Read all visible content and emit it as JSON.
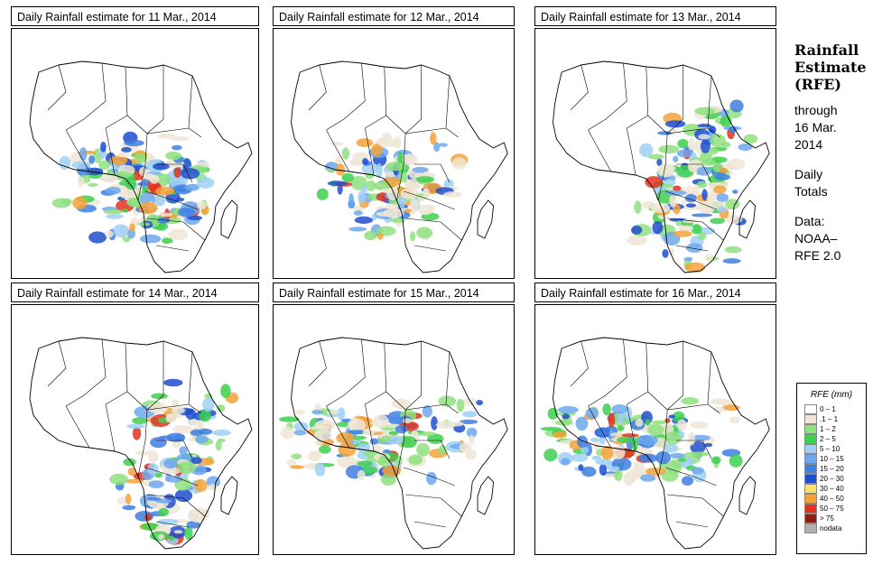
{
  "panels": [
    {
      "title": "Daily Rainfall estimate for  11 Mar., 2014",
      "level": 1.3,
      "focus": "central"
    },
    {
      "title": "Daily Rainfall estimate for  12 Mar., 2014",
      "level": 0.9,
      "focus": "central"
    },
    {
      "title": "Daily Rainfall estimate for  13 Mar., 2014",
      "level": 1.1,
      "focus": "east"
    },
    {
      "title": "Daily Rainfall estimate for  14 Mar., 2014",
      "level": 0.9,
      "focus": "east"
    },
    {
      "title": "Daily Rainfall estimate for  15 Mar., 2014",
      "level": 1.0,
      "focus": "west"
    },
    {
      "title": "Daily Rainfall estimate for  16 Mar., 2014",
      "level": 1.1,
      "focus": "west"
    }
  ],
  "sidebar": {
    "title_lines": [
      "Rainfall",
      "Estimate",
      "(RFE)"
    ],
    "through_lines": [
      "through",
      "16 Mar.",
      "2014"
    ],
    "daily_lines": [
      "Daily",
      "Totals"
    ],
    "data_lines": [
      "Data:",
      "NOAA–",
      "RFE 2.0"
    ]
  },
  "legend": {
    "title": "RFE (mm)",
    "items": [
      {
        "label": "0 – 1",
        "color": "#ffffff"
      },
      {
        "label": ".1 – 1",
        "color": "#efe6d6"
      },
      {
        "label": "1 – 2",
        "color": "#8fe07f"
      },
      {
        "label": "2 – 5",
        "color": "#3fcf4f"
      },
      {
        "label": "5 – 10",
        "color": "#9fd0f4"
      },
      {
        "label": "10 – 15",
        "color": "#6fa8ee"
      },
      {
        "label": "15 – 20",
        "color": "#3f7fe2"
      },
      {
        "label": "20 – 30",
        "color": "#1f4fcf"
      },
      {
        "label": "30 – 40",
        "color": "#f6e36a"
      },
      {
        "label": "40 – 50",
        "color": "#f4a23a"
      },
      {
        "label": "50 – 75",
        "color": "#e2321f"
      },
      {
        "label": "> 75",
        "color": "#8c1f14"
      },
      {
        "label": "nodata",
        "color": "#b0b0b0"
      }
    ]
  }
}
